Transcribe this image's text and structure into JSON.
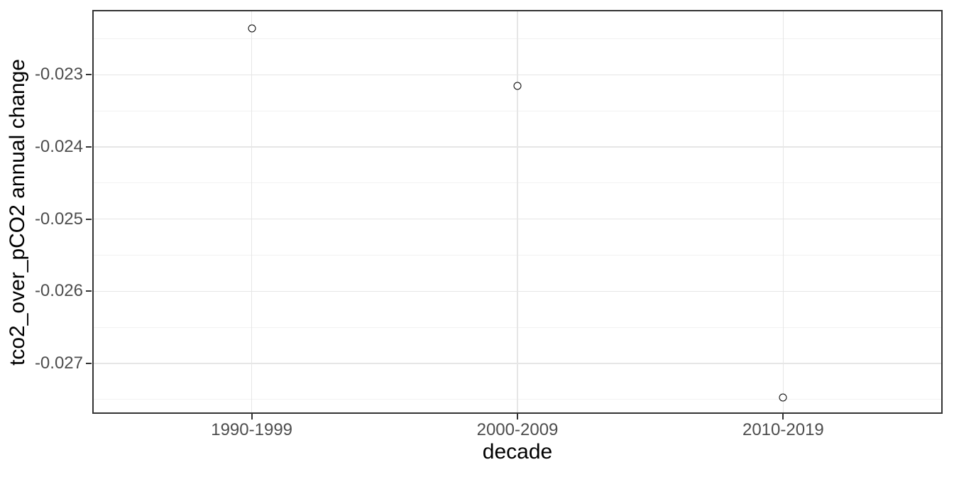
{
  "style": {
    "background": "#ffffff",
    "panel_border_color": "#333333",
    "grid_major_color": "#e6e6e6",
    "grid_minor_color": "#f2f2f2",
    "tick_color": "#333333",
    "tick_label_color": "#4d4d4d",
    "title_color": "#000000",
    "point_color": "#000000"
  },
  "chart_data": {
    "type": "scatter",
    "title": "",
    "xlabel": "decade",
    "ylabel": "tco2_over_pCO2 annual change",
    "categories": [
      "1990-1999",
      "2000-2009",
      "2010-2019"
    ],
    "values": [
      -0.02236,
      -0.02315,
      -0.02747
    ],
    "ytick_values": [
      -0.023,
      -0.024,
      -0.025,
      -0.026,
      -0.027
    ],
    "ytick_labels": [
      "-0.023",
      "-0.024",
      "-0.025",
      "-0.026",
      "-0.027"
    ],
    "y_minor_breaks": [
      -0.0225,
      -0.0235,
      -0.0245,
      -0.0255,
      -0.0265,
      -0.0275
    ],
    "ylim": [
      -0.0277,
      -0.0221
    ],
    "grid": "major-and-minor",
    "legend": "none",
    "point_style": "open-circle",
    "theme": "ggplot-theme-bw"
  }
}
